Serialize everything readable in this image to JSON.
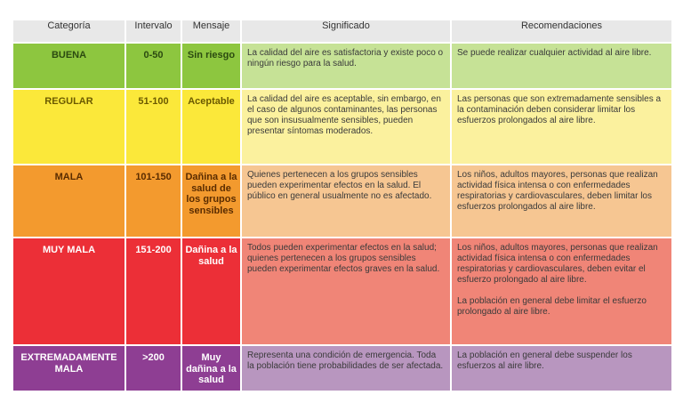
{
  "headers": {
    "categoria": "Categoría",
    "intervalo": "Intervalo",
    "mensaje": "Mensaje",
    "significado": "Significado",
    "recomendaciones": "Recomendaciones"
  },
  "rows": [
    {
      "categoria": "BUENA",
      "intervalo": "0-50",
      "mensaje": "Sin riesgo",
      "significado": "La calidad del aire es satisfactoria y existe poco o ningún riesgo para la salud.",
      "recomendaciones": [
        "Se puede realizar cualquier actividad al aire libre."
      ]
    },
    {
      "categoria": "REGULAR",
      "intervalo": "51-100",
      "mensaje": "Aceptable",
      "significado": "La calidad del aire es aceptable, sin embargo, en el caso de algunos contaminantes, las personas que son insusualmente sensibles, pueden presentar síntomas moderados.",
      "recomendaciones": [
        "Las personas que son extremadamente sensibles a la contaminación deben considerar limitar los esfuerzos prolongados al aire libre."
      ]
    },
    {
      "categoria": "MALA",
      "intervalo": "101-150",
      "mensaje": "Dañina a la salud de los grupos sensibles",
      "significado": "Quienes pertenecen a los grupos sensibles pueden experimentar efectos en la salud. El público en general usualmente no es afectado.",
      "recomendaciones": [
        "Los niños, adultos mayores, personas que realizan actividad física intensa o con enfermedades respiratorias y cardiovasculares, deben limitar los esfuerzos prolongados al aire libre."
      ]
    },
    {
      "categoria": "MUY MALA",
      "intervalo": "151-200",
      "mensaje": "Dañina a la salud",
      "significado": "Todos pueden experimentar efectos en la salud; quienes pertenecen a los grupos sensibles pueden experimentar efectos graves en la salud.",
      "recomendaciones": [
        "Los niños, adultos mayores, personas que realizan actividad física intensa o con enfermedades respiratorias y cardiovasculares, deben evitar el esfuerzo prolongado al aire libre.",
        "La población en general debe limitar el esfuerzo prolongado al aire libre."
      ]
    },
    {
      "categoria": "EXTREMADAMENTE MALA",
      "intervalo": ">200",
      "mensaje": "Muy dañina a la salud",
      "significado": "Representa una condición de emergencia. Toda la población tiene probabilidades de ser afectada.",
      "recomendaciones": [
        "La población en general debe suspender los esfuerzos al aire libre."
      ]
    }
  ],
  "colors": {
    "buena": "#8dc63f",
    "regular": "#fbe83a",
    "mala": "#f39a2e",
    "muy_mala": "#ec2f37",
    "extremadamente_mala": "#8e3e93",
    "header": "#e8e8e8"
  }
}
